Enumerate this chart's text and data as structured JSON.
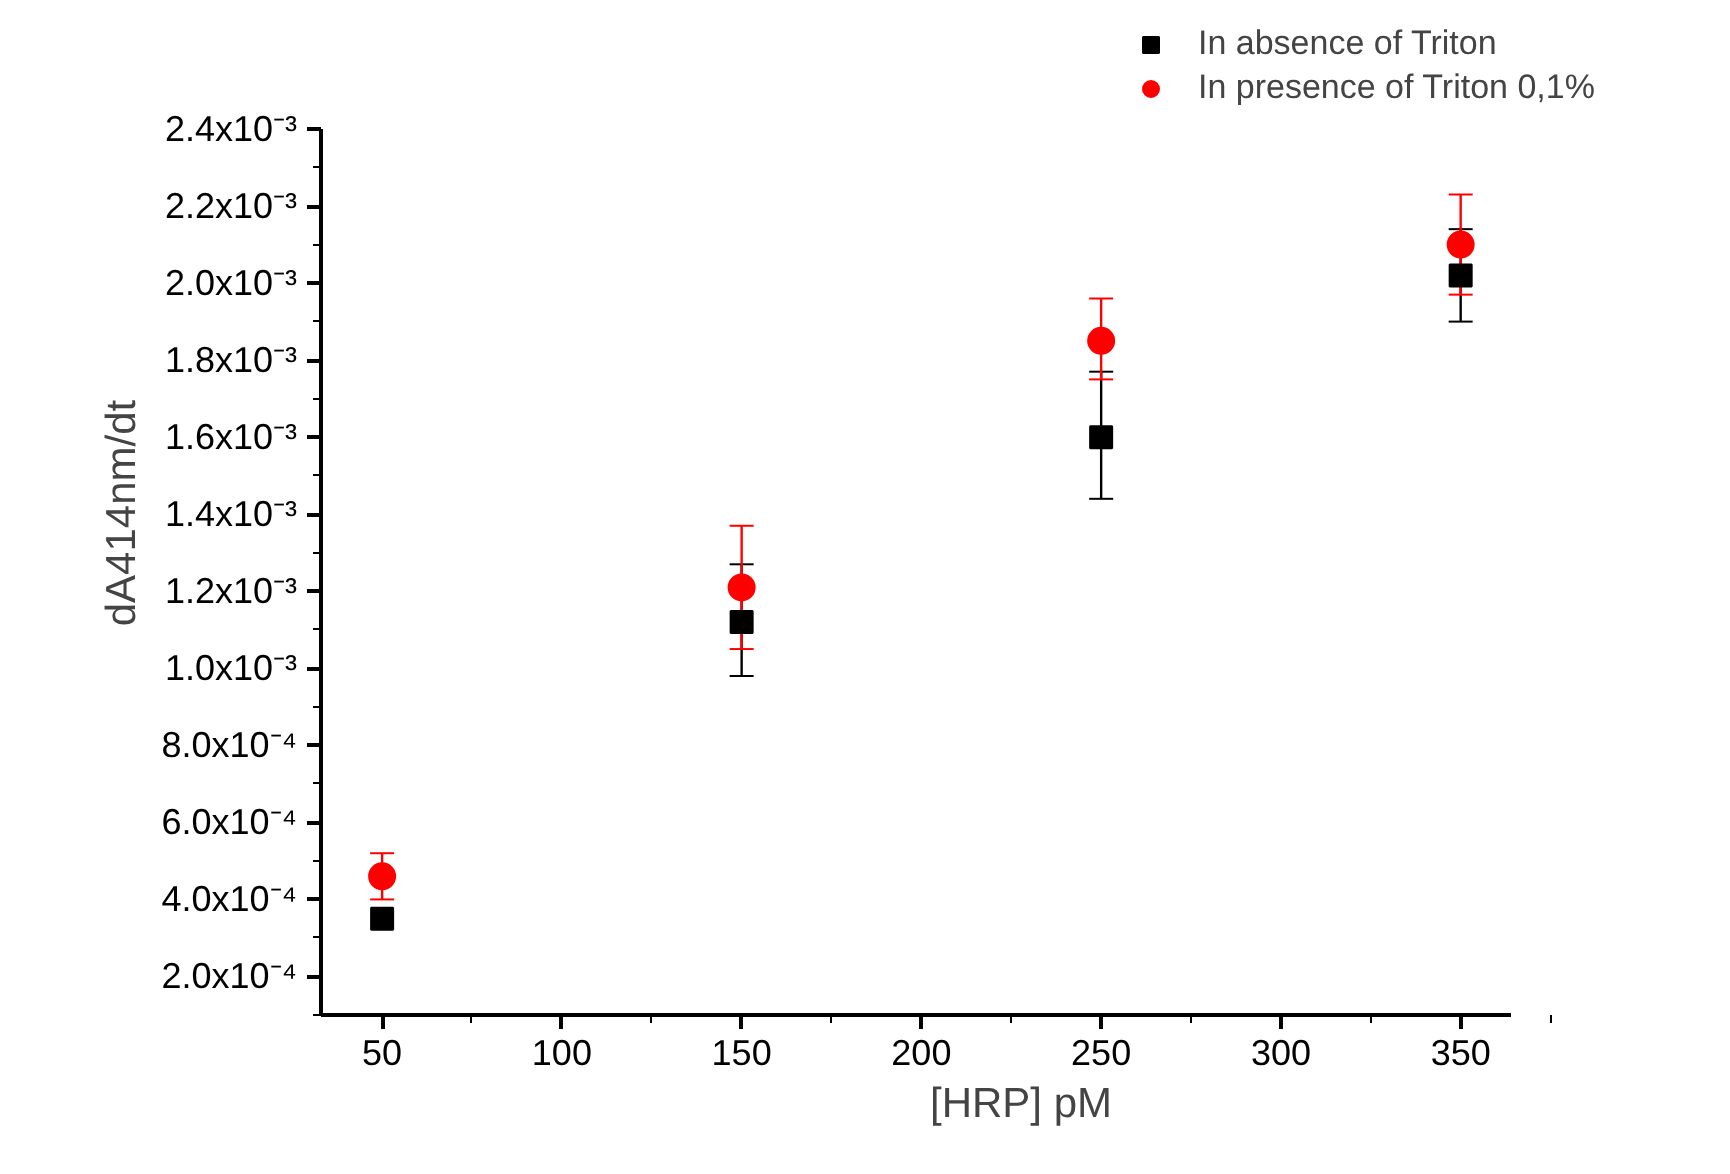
{
  "chart_data": {
    "type": "scatter",
    "xlabel": "[HRP] pM",
    "ylabel": "dA414nm/dt",
    "x": [
      50,
      150,
      250,
      350
    ],
    "series": [
      {
        "name": "In absence of Triton",
        "color": "#000000",
        "marker": "square",
        "values": [
          0.00035,
          0.00112,
          0.0016,
          0.00202
        ],
        "errors": [
          null,
          [
            0.00098,
            0.00127
          ],
          [
            0.00144,
            0.00177
          ],
          [
            0.0019,
            0.00214
          ]
        ]
      },
      {
        "name": "In presence of Triton 0,1%",
        "color": "#ff0000",
        "marker": "circle",
        "values": [
          0.00046,
          0.00121,
          0.00185,
          0.0021
        ],
        "errors": [
          [
            0.0004,
            0.00052
          ],
          [
            0.00105,
            0.00137
          ],
          [
            0.00175,
            0.00196
          ],
          [
            0.00197,
            0.00223
          ]
        ]
      }
    ],
    "xlim": [
      33,
      364
    ],
    "xticks": [
      50,
      100,
      150,
      200,
      250,
      300,
      350
    ],
    "ylim": [
      0.0001,
      0.0024
    ],
    "yticks": [
      {
        "value": 0.0002,
        "label": "2.0x10⁻⁴"
      },
      {
        "value": 0.0004,
        "label": "4.0x10⁻⁴"
      },
      {
        "value": 0.0006,
        "label": "6.0x10⁻⁴"
      },
      {
        "value": 0.0008,
        "label": "8.0x10⁻⁴"
      },
      {
        "value": 0.001,
        "label": "1.0x10⁻³"
      },
      {
        "value": 0.0012,
        "label": "1.2x10⁻³"
      },
      {
        "value": 0.0014,
        "label": "1.4x10⁻³"
      },
      {
        "value": 0.0016,
        "label": "1.6x10⁻³"
      },
      {
        "value": 0.0018,
        "label": "1.8x10⁻³"
      },
      {
        "value": 0.002,
        "label": "2.0x10⁻³"
      },
      {
        "value": 0.0022,
        "label": "2.2x10⁻³"
      },
      {
        "value": 0.0024,
        "label": "2.4x10⁻³"
      }
    ],
    "grid": false,
    "legend": "top right"
  }
}
